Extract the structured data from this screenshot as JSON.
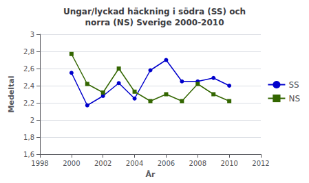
{
  "chart_data": {
    "type": "line",
    "title": "Ungar/lyckad häckning i södra (SS) och\nnorra (NS) Sverige 2000-2010",
    "xlabel": "År",
    "ylabel": "Medeltal",
    "x": [
      2000,
      2001,
      2002,
      2003,
      2004,
      2005,
      2006,
      2007,
      2008,
      2009,
      2010
    ],
    "series": [
      {
        "name": "SS",
        "color": "#0000CC",
        "marker": "circle",
        "values": [
          2.55,
          2.17,
          2.28,
          2.43,
          2.25,
          2.58,
          2.7,
          2.45,
          2.45,
          2.49,
          2.4
        ]
      },
      {
        "name": "NS",
        "color": "#336600",
        "marker": "square",
        "values": [
          2.77,
          2.42,
          2.32,
          2.6,
          2.33,
          2.22,
          2.3,
          2.22,
          2.42,
          2.3,
          2.22
        ]
      }
    ],
    "xlim": [
      1998,
      2012
    ],
    "xticks": [
      1998,
      2000,
      2002,
      2004,
      2006,
      2008,
      2010,
      2012
    ],
    "ylim": [
      1.6,
      3.0
    ],
    "yticks": [
      {
        "value": 1.6,
        "label": "1,6"
      },
      {
        "value": 1.8,
        "label": "1,8"
      },
      2,
      {
        "value": 2.2,
        "label": "2,2"
      },
      {
        "value": 2.4,
        "label": "2,4"
      },
      {
        "value": 2.6,
        "label": "2,6"
      },
      {
        "value": 2.8,
        "label": "2,8"
      },
      3
    ],
    "grid": "y",
    "legend": "right"
  }
}
